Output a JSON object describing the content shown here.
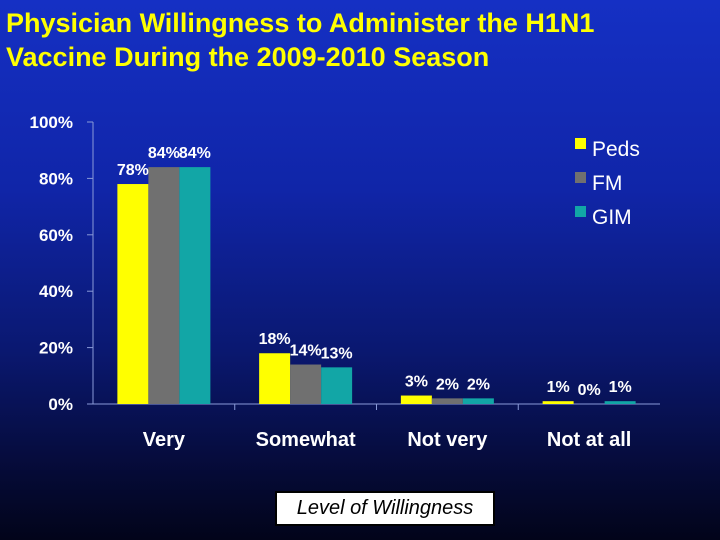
{
  "title": "Physician Willingness to Administer the H1N1\nVaccine During the 2009-2010 Season",
  "chart_data": {
    "type": "bar",
    "title": "Physician Willingness to Administer the H1N1 Vaccine During the 2009-2010 Season",
    "xlabel": "Level of Willingness",
    "ylabel": "",
    "categories": [
      "Very",
      "Somewhat",
      "Not very",
      "Not at all"
    ],
    "series": [
      {
        "name": "Peds",
        "color": "#ffff00",
        "values": [
          78,
          18,
          3,
          1
        ],
        "labels": [
          "78%",
          "18%",
          "3%",
          "1%"
        ]
      },
      {
        "name": "FM",
        "color": "#707070",
        "values": [
          84,
          14,
          2,
          0
        ],
        "labels": [
          "84%",
          "14%",
          "2%",
          "0%"
        ]
      },
      {
        "name": "GIM",
        "color": "#12a6a6",
        "values": [
          84,
          13,
          2,
          1
        ],
        "labels": [
          "84%",
          "13%",
          "2%",
          "1%"
        ]
      }
    ],
    "yticks": [
      "0%",
      "20%",
      "40%",
      "60%",
      "80%",
      "100%"
    ],
    "ylim": [
      0,
      100
    ],
    "legend_position": "top-right",
    "grid": false
  }
}
